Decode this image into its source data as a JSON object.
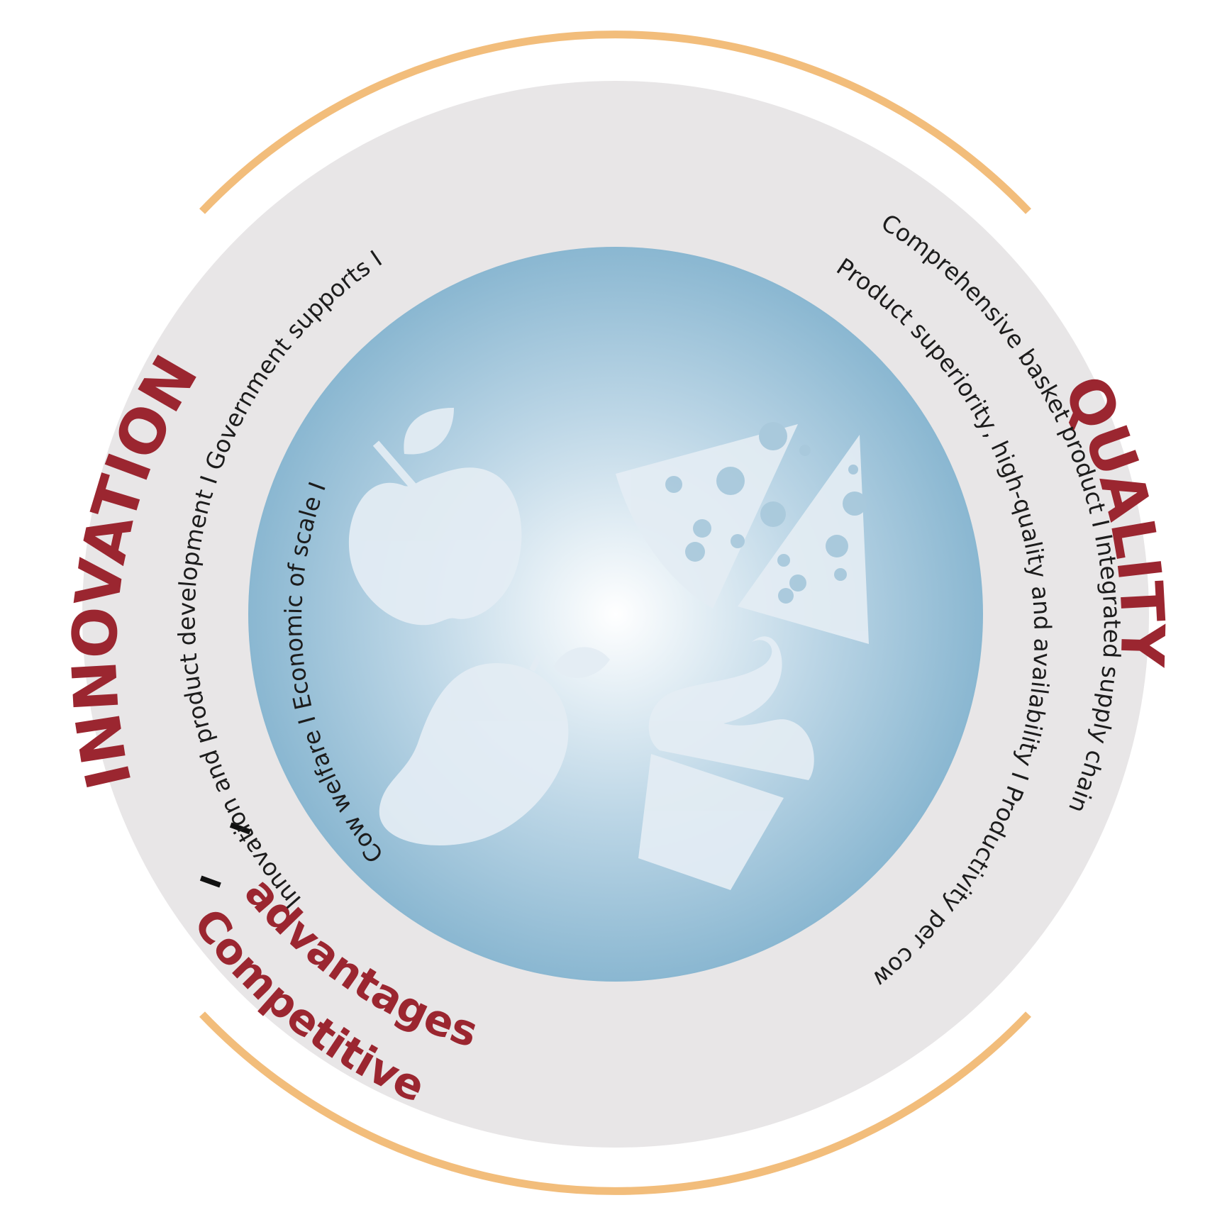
{
  "colors": {
    "arc_orange": "#f2bd7b",
    "ring_grey": "#e8e6e7",
    "accent_red": "#9b2630",
    "sphere_blue": "#8dbad3",
    "icon_fill": "#e4edf4"
  },
  "labels": {
    "innovation": "INNOVATION",
    "quality": "QUALITY",
    "competitive": "Competitive",
    "advantages": "advantages"
  },
  "left_ring": {
    "line1": "Innovation and product development  I  Government supports  I",
    "line2": "Cow welfare  I  Economic of scale  I"
  },
  "right_ring": {
    "line1": "Comprehensive basket product  I  Integrated supply chain",
    "line2": "Product superiority, high-quality and availability  I  Productivity per cow"
  },
  "separators": {
    "bold_bar": "I"
  },
  "icons": [
    "apple-icon",
    "cheese-icon",
    "mango-icon",
    "cupcake-icon"
  ]
}
